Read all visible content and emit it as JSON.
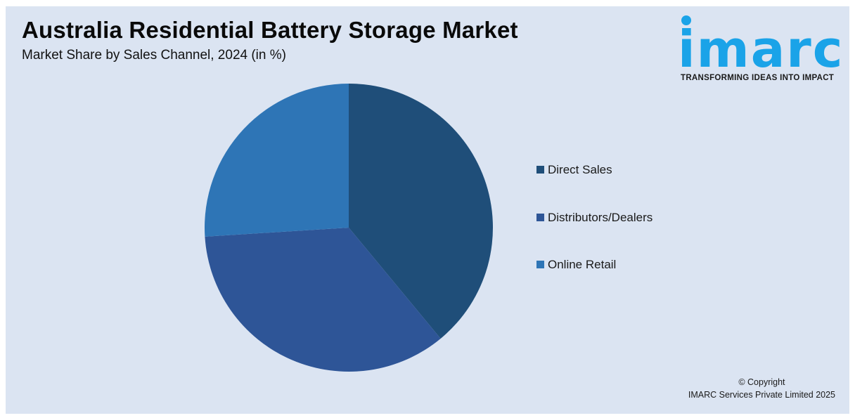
{
  "header": {
    "title": "Australia Residential Battery Storage Market",
    "subtitle": "Market Share by Sales Channel, 2024 (in %)"
  },
  "logo": {
    "wordmark": "imarc",
    "tagline": "TRANSFORMING IDEAS INTO IMPACT",
    "color": "#1aa3e8"
  },
  "footer": {
    "copyright_line1": "© Copyright",
    "copyright_line2": "IMARC Services Private Limited 2025"
  },
  "chart_data": {
    "type": "pie",
    "title": "Australia Residential Battery Storage Market",
    "subtitle": "Market Share by Sales Channel, 2024 (in %)",
    "legend_position": "right",
    "categories": [
      "Direct Sales",
      "Distributors/Dealers",
      "Online Retail"
    ],
    "values": [
      39,
      35,
      26
    ],
    "colors": [
      "#1f4e79",
      "#2e5597",
      "#2e75b6"
    ]
  }
}
